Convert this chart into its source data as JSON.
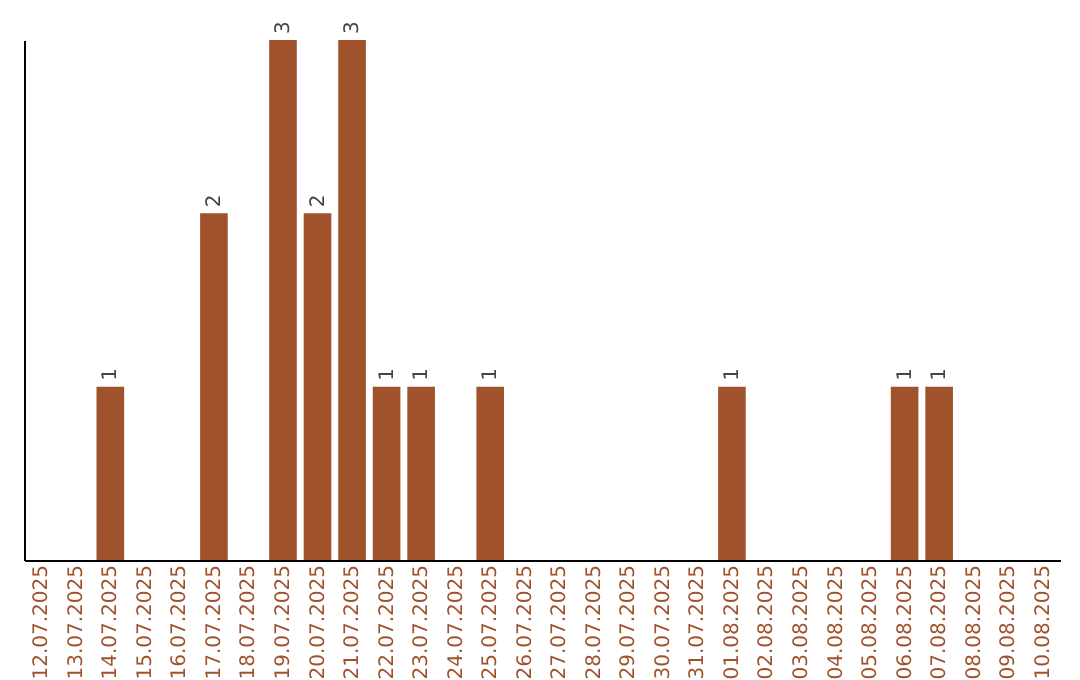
{
  "chart_data": {
    "type": "bar",
    "categories": [
      "12.07.2025",
      "13.07.2025",
      "14.07.2025",
      "15.07.2025",
      "16.07.2025",
      "17.07.2025",
      "18.07.2025",
      "19.07.2025",
      "20.07.2025",
      "21.07.2025",
      "22.07.2025",
      "23.07.2025",
      "24.07.2025",
      "25.07.2025",
      "26.07.2025",
      "27.07.2025",
      "28.07.2025",
      "29.07.2025",
      "30.07.2025",
      "31.07.2025",
      "01.08.2025",
      "02.08.2025",
      "03.08.2025",
      "04.08.2025",
      "05.08.2025",
      "06.08.2025",
      "07.08.2025",
      "08.08.2025",
      "09.08.2025",
      "10.08.2025"
    ],
    "values": [
      0,
      0,
      1,
      0,
      0,
      2,
      0,
      3,
      2,
      3,
      1,
      1,
      0,
      1,
      0,
      0,
      0,
      0,
      0,
      0,
      1,
      0,
      0,
      0,
      0,
      1,
      1,
      0,
      0,
      0
    ],
    "value_labels": [
      null,
      null,
      "1",
      null,
      null,
      "2",
      null,
      "3",
      "2",
      "3",
      "1",
      "1",
      null,
      "1",
      null,
      null,
      null,
      null,
      null,
      null,
      "1",
      null,
      null,
      null,
      null,
      "1",
      "1",
      null,
      null,
      null
    ],
    "color": "#a0522d",
    "tick_labels": "x",
    "grid": false
  }
}
